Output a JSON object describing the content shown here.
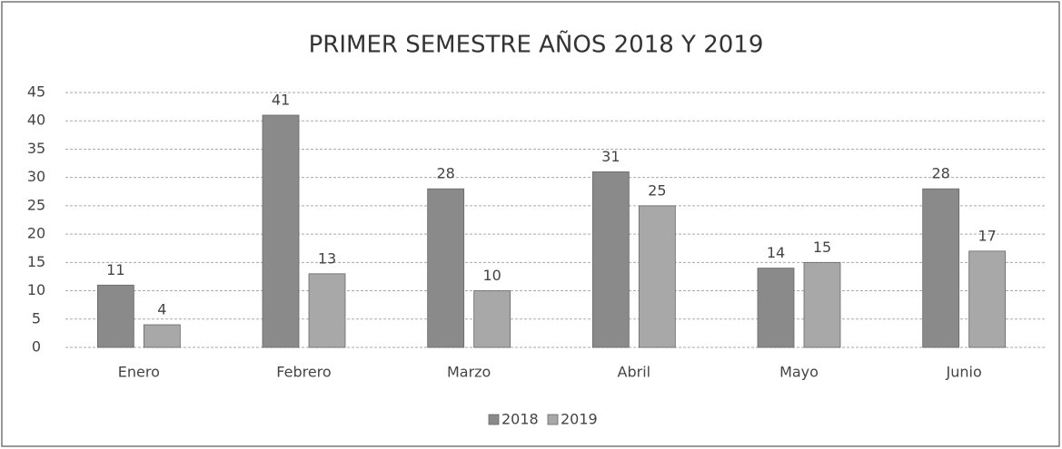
{
  "chart_data": {
    "type": "bar",
    "title": "PRIMER SEMESTRE AÑOS 2018 Y 2019",
    "categories": [
      "Enero",
      "Febrero",
      "Marzo",
      "Abril",
      "Mayo",
      "Junio"
    ],
    "series": [
      {
        "name": "2018",
        "color": "#8a8a8a",
        "values": [
          11,
          41,
          28,
          31,
          14,
          28
        ]
      },
      {
        "name": "2019",
        "color": "#a8a8a8",
        "values": [
          4,
          13,
          10,
          25,
          15,
          17
        ]
      }
    ],
    "ylim": [
      0,
      45
    ],
    "yticks": [
      0,
      5,
      10,
      15,
      20,
      25,
      30,
      35,
      40,
      45
    ],
    "grid": true,
    "legend": "bottom"
  }
}
